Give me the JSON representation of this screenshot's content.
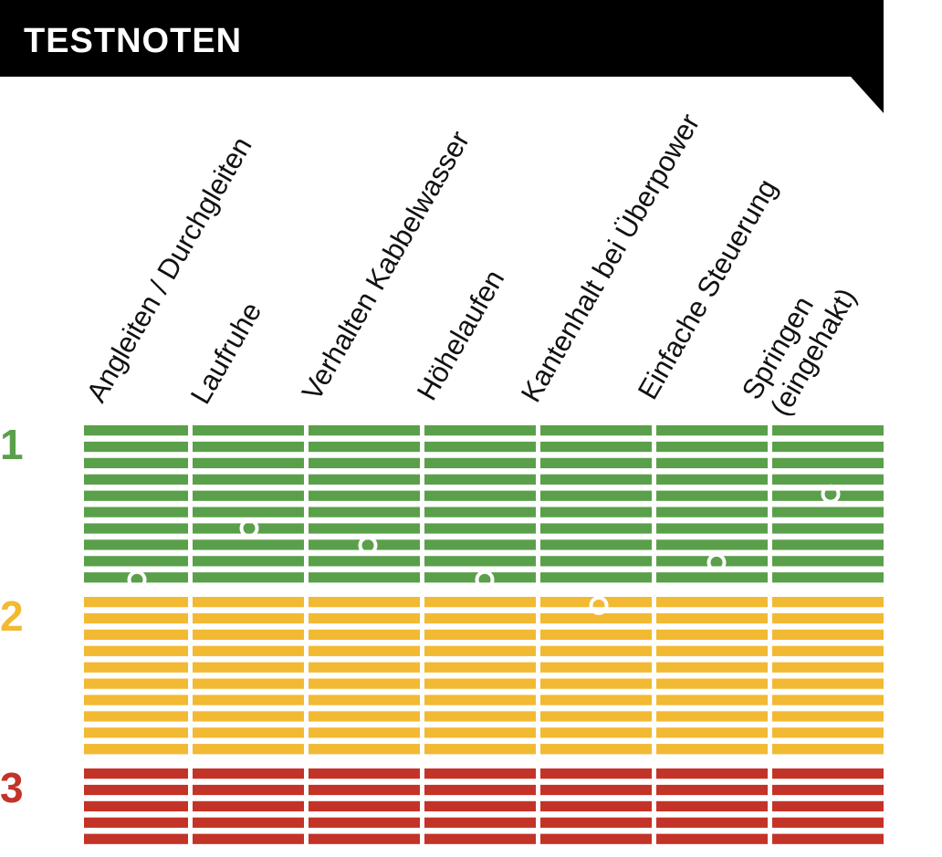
{
  "header": {
    "title": "TESTNOTEN"
  },
  "chart_data": {
    "type": "dot-grid",
    "title": "TESTNOTEN",
    "categories": [
      [
        "Angleiten / Durchgleiten"
      ],
      [
        "Laufruhe"
      ],
      [
        "Verhalten Kabbelwasser"
      ],
      [
        "Höhelaufen"
      ],
      [
        "Kantenhalt bei Überpower"
      ],
      [
        "Einfache Steuerung"
      ],
      [
        "Springen",
        "(eingehakt)"
      ]
    ],
    "bands": [
      {
        "label": "1",
        "color": "#5aa04a",
        "lines": 10
      },
      {
        "label": "2",
        "color": "#f2b933",
        "lines": 10
      },
      {
        "label": "3",
        "color": "#c43328",
        "lines": 5
      }
    ],
    "values": [
      1.9,
      1.6,
      1.7,
      1.9,
      2.05,
      1.8,
      1.4
    ],
    "scale": [
      1,
      3.5
    ]
  }
}
